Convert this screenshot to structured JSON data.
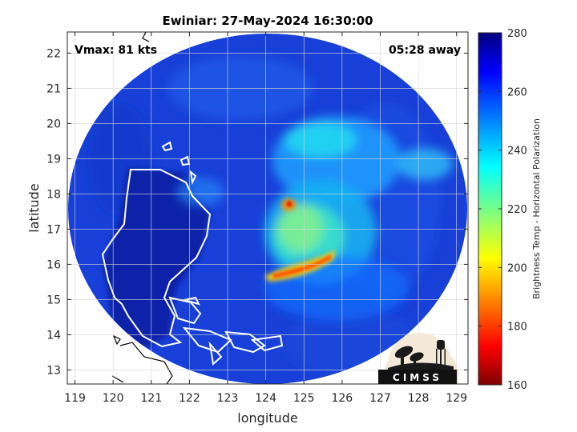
{
  "chart_data": {
    "type": "heatmap",
    "title": "Ewiniar: 27-May-2024 16:30:00",
    "xlabel": "longitude",
    "ylabel": "latitude",
    "xlim": [
      118.8,
      129.3
    ],
    "ylim": [
      12.6,
      22.6
    ],
    "x_ticks": [
      "119",
      "120",
      "121",
      "122",
      "123",
      "124",
      "125",
      "126",
      "127",
      "128",
      "129"
    ],
    "y_ticks": [
      "13",
      "14",
      "15",
      "16",
      "17",
      "18",
      "19",
      "20",
      "21",
      "22"
    ],
    "grid": true,
    "annotations": {
      "vmax": "Vmax: 81 kts",
      "time_away": "05:28 away"
    },
    "colorbar": {
      "label": "Brightness Temp - Horizontal Polarization",
      "range": [
        160,
        280
      ],
      "ticks": [
        "280",
        "260",
        "240",
        "220",
        "200",
        "180",
        "160"
      ],
      "colormap": "jet"
    },
    "swath": {
      "center_lon": 124.0,
      "center_lat": 17.5,
      "approx_extent_deg": 4.9,
      "background_value": 265
    },
    "features": [
      {
        "name": "rainband-cyan",
        "lon": 125.3,
        "lat": 18.2,
        "value": 242
      },
      {
        "name": "core-region",
        "lon": 124.7,
        "lat": 17.0,
        "value": 228
      },
      {
        "name": "eye-spot",
        "lon": 124.45,
        "lat": 17.65,
        "value": 190
      },
      {
        "name": "south-band",
        "lon": 125.0,
        "lat": 15.85,
        "value": 195
      },
      {
        "name": "land-luzon",
        "lon": 121.2,
        "lat": 17.2,
        "value": 272
      }
    ],
    "logo": "CIMSS",
    "colors": {
      "coastline": "#ffffff",
      "outside_coastline": "#000000",
      "background": "#ffffff"
    }
  }
}
